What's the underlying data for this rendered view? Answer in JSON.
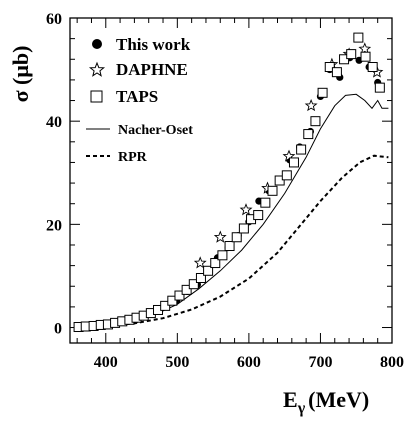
{
  "chart_data": {
    "type": "scatter",
    "title": "",
    "xlabel": "E",
    "xlabel_sub": "γ",
    "xlabel_unit": "(MeV)",
    "ylabel": "σ (μb)",
    "xlim": [
      350,
      800
    ],
    "ylim": [
      -3,
      60
    ],
    "x_ticks": [
      400,
      500,
      600,
      700,
      800
    ],
    "y_ticks": [
      0,
      20,
      40,
      60
    ],
    "x_tick_labels": [
      "400",
      "500",
      "600",
      "700",
      "800"
    ],
    "y_tick_labels": [
      "0",
      "20",
      "40",
      "60"
    ],
    "grid": false,
    "legend_position": "top-left",
    "series": [
      {
        "name": "This work",
        "kind": "points",
        "marker": "filled-circle",
        "points": [
          {
            "x": 384,
            "y": 0.2
          },
          {
            "x": 398,
            "y": 0.5
          },
          {
            "x": 412,
            "y": 0.8
          },
          {
            "x": 427,
            "y": 1.0
          },
          {
            "x": 441,
            "y": 1.4
          },
          {
            "x": 456,
            "y": 2.2
          },
          {
            "x": 470,
            "y": 3.3
          },
          {
            "x": 485,
            "y": 4.2
          },
          {
            "x": 499,
            "y": 5.2
          },
          {
            "x": 514,
            "y": 7.0
          },
          {
            "x": 528,
            "y": 8.3
          },
          {
            "x": 542,
            "y": 10.8
          },
          {
            "x": 556,
            "y": 13.5
          },
          {
            "x": 571,
            "y": 15.5
          },
          {
            "x": 585,
            "y": 17.8
          },
          {
            "x": 600,
            "y": 20.5
          },
          {
            "x": 614,
            "y": 24.5
          },
          {
            "x": 628,
            "y": 26.5
          },
          {
            "x": 643,
            "y": 28.5
          },
          {
            "x": 657,
            "y": 32.5
          },
          {
            "x": 671,
            "y": 35.0
          },
          {
            "x": 686,
            "y": 38.0
          },
          {
            "x": 700,
            "y": 44.8
          },
          {
            "x": 713,
            "y": 50.0
          },
          {
            "x": 727,
            "y": 48.5
          },
          {
            "x": 741,
            "y": 52.3
          },
          {
            "x": 754,
            "y": 51.8
          },
          {
            "x": 768,
            "y": 50.5
          },
          {
            "x": 780,
            "y": 47.5
          }
        ]
      },
      {
        "name": "DAPHNE",
        "kind": "points",
        "marker": "open-star",
        "points": [
          {
            "x": 532,
            "y": 12.5
          },
          {
            "x": 560,
            "y": 17.5
          },
          {
            "x": 596,
            "y": 22.8
          },
          {
            "x": 626,
            "y": 27.0
          },
          {
            "x": 656,
            "y": 33.2
          },
          {
            "x": 687,
            "y": 43.0
          },
          {
            "x": 716,
            "y": 51.0
          },
          {
            "x": 740,
            "y": 53.0
          },
          {
            "x": 762,
            "y": 54.0
          },
          {
            "x": 779,
            "y": 49.5
          }
        ]
      },
      {
        "name": "TAPS",
        "kind": "points",
        "marker": "open-square",
        "points": [
          {
            "x": 362,
            "y": 0.1
          },
          {
            "x": 372,
            "y": 0.2
          },
          {
            "x": 383,
            "y": 0.3
          },
          {
            "x": 393,
            "y": 0.5
          },
          {
            "x": 403,
            "y": 0.6
          },
          {
            "x": 413,
            "y": 0.9
          },
          {
            "x": 423,
            "y": 1.2
          },
          {
            "x": 433,
            "y": 1.5
          },
          {
            "x": 443,
            "y": 1.9
          },
          {
            "x": 453,
            "y": 2.3
          },
          {
            "x": 463,
            "y": 2.8
          },
          {
            "x": 473,
            "y": 3.4
          },
          {
            "x": 483,
            "y": 4.2
          },
          {
            "x": 493,
            "y": 5.2
          },
          {
            "x": 503,
            "y": 6.2
          },
          {
            "x": 513,
            "y": 7.3
          },
          {
            "x": 523,
            "y": 8.4
          },
          {
            "x": 533,
            "y": 9.6
          },
          {
            "x": 543,
            "y": 11.0
          },
          {
            "x": 553,
            "y": 12.5
          },
          {
            "x": 563,
            "y": 14.0
          },
          {
            "x": 573,
            "y": 15.8
          },
          {
            "x": 583,
            "y": 17.5
          },
          {
            "x": 593,
            "y": 19.2
          },
          {
            "x": 603,
            "y": 21.0
          },
          {
            "x": 613,
            "y": 21.8
          },
          {
            "x": 623,
            "y": 24.2
          },
          {
            "x": 633,
            "y": 26.5
          },
          {
            "x": 643,
            "y": 28.5
          },
          {
            "x": 653,
            "y": 29.5
          },
          {
            "x": 663,
            "y": 32.0
          },
          {
            "x": 673,
            "y": 34.5
          },
          {
            "x": 683,
            "y": 37.5
          },
          {
            "x": 693,
            "y": 40.0
          },
          {
            "x": 703,
            "y": 45.5
          },
          {
            "x": 713,
            "y": 50.5
          },
          {
            "x": 723,
            "y": 49.5
          },
          {
            "x": 733,
            "y": 52.0
          },
          {
            "x": 743,
            "y": 53.0
          },
          {
            "x": 753,
            "y": 56.2
          },
          {
            "x": 763,
            "y": 52.5
          },
          {
            "x": 773,
            "y": 50.5
          },
          {
            "x": 783,
            "y": 46.5
          }
        ]
      },
      {
        "name": "Nacher-Oset",
        "kind": "line",
        "style": "solid",
        "points": [
          {
            "x": 360,
            "y": 0.0
          },
          {
            "x": 400,
            "y": 0.4
          },
          {
            "x": 440,
            "y": 1.3
          },
          {
            "x": 470,
            "y": 2.6
          },
          {
            "x": 500,
            "y": 4.5
          },
          {
            "x": 530,
            "y": 7.5
          },
          {
            "x": 560,
            "y": 11.0
          },
          {
            "x": 590,
            "y": 15.0
          },
          {
            "x": 620,
            "y": 20.0
          },
          {
            "x": 650,
            "y": 26.0
          },
          {
            "x": 680,
            "y": 33.0
          },
          {
            "x": 700,
            "y": 38.5
          },
          {
            "x": 720,
            "y": 43.0
          },
          {
            "x": 735,
            "y": 45.0
          },
          {
            "x": 750,
            "y": 45.2
          },
          {
            "x": 762,
            "y": 44.0
          },
          {
            "x": 772,
            "y": 42.5
          },
          {
            "x": 780,
            "y": 44.0
          },
          {
            "x": 786,
            "y": 42.5
          },
          {
            "x": 795,
            "y": 42.5
          }
        ]
      },
      {
        "name": "RPR",
        "kind": "line",
        "style": "dashed",
        "points": [
          {
            "x": 360,
            "y": 0.0
          },
          {
            "x": 400,
            "y": 0.3
          },
          {
            "x": 440,
            "y": 0.8
          },
          {
            "x": 480,
            "y": 1.8
          },
          {
            "x": 520,
            "y": 3.5
          },
          {
            "x": 560,
            "y": 6.0
          },
          {
            "x": 600,
            "y": 9.5
          },
          {
            "x": 640,
            "y": 14.5
          },
          {
            "x": 670,
            "y": 19.5
          },
          {
            "x": 700,
            "y": 24.5
          },
          {
            "x": 730,
            "y": 29.0
          },
          {
            "x": 755,
            "y": 32.0
          },
          {
            "x": 775,
            "y": 33.3
          },
          {
            "x": 795,
            "y": 33.0
          }
        ]
      }
    ]
  }
}
